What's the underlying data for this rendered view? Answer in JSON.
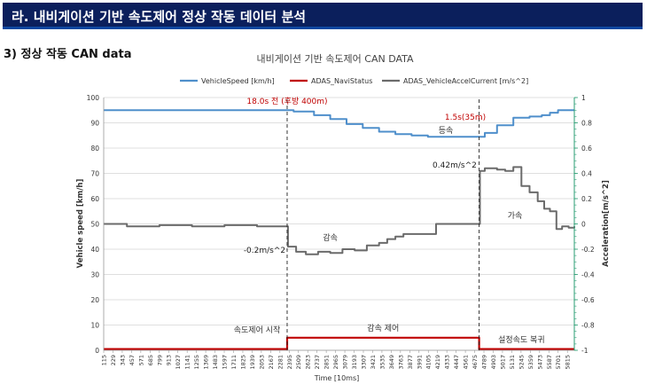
{
  "header": {
    "title": "라. 내비게이션 기반 속도제어 정상 작동 데이터 분석"
  },
  "section": {
    "title": "3) 정상 작동 CAN data"
  },
  "colors": {
    "speed": "#4f8fcb",
    "navi": "#c00000",
    "accel": "#6b6b6b",
    "right_axis": "#2a9d73",
    "header_bg": "#0b1f5c"
  },
  "chart_data": {
    "type": "line",
    "title": "내비게이션 기반 속도제어 CAN DATA",
    "xlabel": "Time [10ms]",
    "ylabel": "Vehicle speed [km/h]",
    "y2label": "Acceleration[m/s^2]",
    "ylim": [
      0,
      100
    ],
    "y2lim": [
      -1,
      1
    ],
    "yticks": [
      "0",
      "10",
      "20",
      "30",
      "40",
      "50",
      "60",
      "70",
      "80",
      "90",
      "100"
    ],
    "y2ticks": [
      "-1",
      "-0.8",
      "-0.6",
      "-0.4",
      "-0.2",
      "0",
      "0.2",
      "0.4",
      "0.6",
      "0.8",
      "1"
    ],
    "xlim": [
      115,
      5900
    ],
    "xticks": [
      "115",
      "229",
      "343",
      "457",
      "571",
      "685",
      "799",
      "913",
      "1027",
      "1141",
      "1255",
      "1369",
      "1483",
      "1597",
      "1711",
      "1825",
      "1939",
      "2053",
      "2167",
      "2281",
      "2395",
      "2509",
      "2623",
      "2737",
      "2851",
      "2965",
      "3079",
      "3193",
      "3307",
      "3421",
      "3535",
      "3649",
      "3763",
      "3877",
      "3991",
      "4105",
      "4219",
      "4333",
      "4447",
      "4561",
      "4675",
      "4789",
      "4903",
      "5017",
      "5131",
      "5245",
      "5359",
      "5473",
      "5587",
      "5701",
      "5815"
    ],
    "legend": [
      "VehicleSpeed [km/h]",
      "ADAS_NaviStatus",
      "ADAS_VehicleAccelCurrent [m/s^2]"
    ],
    "series": [
      {
        "name": "VehicleSpeed [km/h]",
        "axis": "left",
        "x": [
          115,
          2350,
          2450,
          2700,
          2900,
          3100,
          3300,
          3500,
          3700,
          3900,
          4100,
          4300,
          4500,
          4700,
          4800,
          4950,
          5150,
          5350,
          5500,
          5600,
          5700,
          5900
        ],
        "y": [
          95,
          95,
          94.5,
          93,
          91.5,
          89.5,
          88,
          86.5,
          85.5,
          85,
          84.5,
          84.5,
          84.5,
          84.5,
          86,
          89,
          92,
          92.5,
          93,
          94,
          95,
          95
        ]
      },
      {
        "name": "ADAS_NaviStatus",
        "axis": "left",
        "x": [
          115,
          2370,
          2370,
          4730,
          4730,
          5900
        ],
        "y": [
          0.5,
          0.5,
          5,
          5,
          0.5,
          0.5
        ]
      },
      {
        "name": "ADAS_VehicleAccelCurrent [m/s^2]",
        "axis": "right",
        "x": [
          115,
          400,
          800,
          1200,
          1600,
          2000,
          2360,
          2380,
          2480,
          2600,
          2750,
          2900,
          3050,
          3200,
          3350,
          3500,
          3600,
          3700,
          3800,
          4100,
          4200,
          4500,
          4730,
          4740,
          4800,
          4950,
          5050,
          5150,
          5250,
          5350,
          5450,
          5530,
          5600,
          5650,
          5680,
          5750,
          5830,
          5900
        ],
        "y": [
          0,
          -0.02,
          -0.01,
          -0.02,
          -0.01,
          -0.02,
          -0.02,
          -0.18,
          -0.22,
          -0.24,
          -0.22,
          -0.23,
          -0.2,
          -0.21,
          -0.17,
          -0.15,
          -0.12,
          -0.1,
          -0.08,
          -0.08,
          0,
          0,
          0,
          0.42,
          0.44,
          0.43,
          0.42,
          0.45,
          0.3,
          0.25,
          0.18,
          0.12,
          0.1,
          0.1,
          -0.04,
          -0.02,
          -0.03,
          -0.02
        ]
      }
    ],
    "annotations": {
      "pre_label": "18.0s 전 (후방 400m)",
      "post_label": "1.5s(35m)",
      "constant_label": "등속",
      "accel_peak_label": "0.42m/s^2",
      "decel_label": "감속",
      "decel_value_label": "-0.2m/s^2",
      "accel_label": "가속",
      "phase_start_label": "속도제어 시작",
      "phase_decel_label": "감속 제어",
      "phase_restore_label": "설정속도 복귀"
    }
  }
}
